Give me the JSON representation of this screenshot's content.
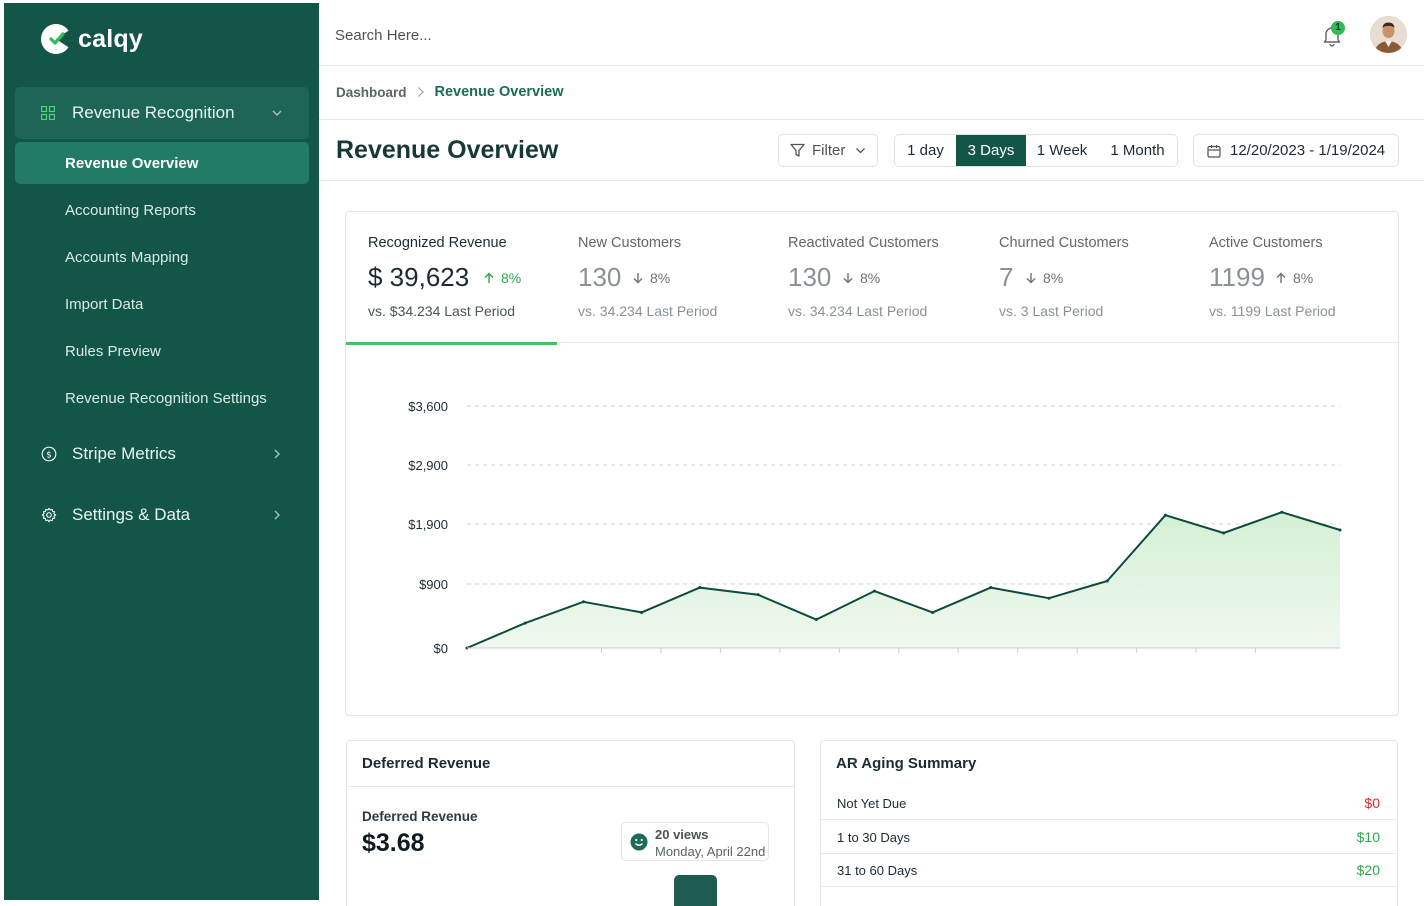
{
  "app": {
    "name": "calqy"
  },
  "colors": {
    "sidebar": "#135647",
    "accent": "#237b65",
    "positive": "#2fa84a",
    "negative": "#e5262b"
  },
  "sidebar": {
    "group": {
      "label": "Revenue Recognition",
      "icon": "grid-icon"
    },
    "items": [
      {
        "label": "Revenue Overview",
        "active": true
      },
      {
        "label": "Accounting Reports"
      },
      {
        "label": "Accounts Mapping"
      },
      {
        "label": "Import Data"
      },
      {
        "label": "Rules Preview"
      },
      {
        "label": "Revenue Recognition Settings"
      }
    ],
    "sections": [
      {
        "label": "Stripe Metrics",
        "icon": "dollar-circle-icon"
      },
      {
        "label": "Settings & Data",
        "icon": "gear-icon"
      }
    ]
  },
  "topbar": {
    "search_placeholder": "Search Here...",
    "notification_count": "1"
  },
  "breadcrumb": {
    "root": "Dashboard",
    "current": "Revenue Overview"
  },
  "page": {
    "title": "Revenue Overview"
  },
  "toolbar": {
    "filter_label": "Filter",
    "ranges": [
      "1 day",
      "3 Days",
      "1 Week",
      "1 Month"
    ],
    "selected_range": "3 Days",
    "date_range": "12/20/2023 - 1/19/2024"
  },
  "metrics": [
    {
      "title": "Recognized Revenue",
      "value": "$ 39,623",
      "change": "8%",
      "direction": "up",
      "sub": "vs. $34.234 Last Period",
      "active": true
    },
    {
      "title": "New Customers",
      "value": "130",
      "change": "8%",
      "direction": "down",
      "sub": "vs. 34.234 Last Period"
    },
    {
      "title": "Reactivated Customers",
      "value": "130",
      "change": "8%",
      "direction": "down",
      "sub": "vs. 34.234 Last Period"
    },
    {
      "title": "Churned Customers",
      "value": "7",
      "change": "8%",
      "direction": "down",
      "sub": "vs. 3 Last Period"
    },
    {
      "title": "Active Customers",
      "value": "1199",
      "change": "8%",
      "direction": "up",
      "sub": "vs. 1199 Last Period"
    }
  ],
  "chart_data": {
    "type": "area",
    "y_ticks": [
      0,
      900,
      1900,
      2900,
      3600
    ],
    "y_tick_labels": [
      "$0",
      "$900",
      "$1,900",
      "$2,900",
      "$3,600"
    ],
    "grid": "dashed horizontal",
    "series": [
      {
        "values": [
          0,
          350,
          650,
          500,
          850,
          750,
          400,
          800,
          500,
          850,
          700,
          950,
          2050,
          1750,
          2100,
          1800
        ]
      }
    ]
  },
  "deferred": {
    "title": "Deferred Revenue",
    "label": "Deferred Revenue",
    "value": "$3.68",
    "views": "20 views",
    "views_date": "Monday, April 22nd"
  },
  "ar_aging": {
    "title": "AR Aging Summary",
    "rows": [
      {
        "label": "Not Yet Due",
        "value": "$0",
        "color": "#e5262b"
      },
      {
        "label": "1 to 30 Days",
        "value": "$10",
        "color": "#2fa84a"
      },
      {
        "label": "31 to 60 Days",
        "value": "$20",
        "color": "#2fa84a"
      }
    ]
  }
}
